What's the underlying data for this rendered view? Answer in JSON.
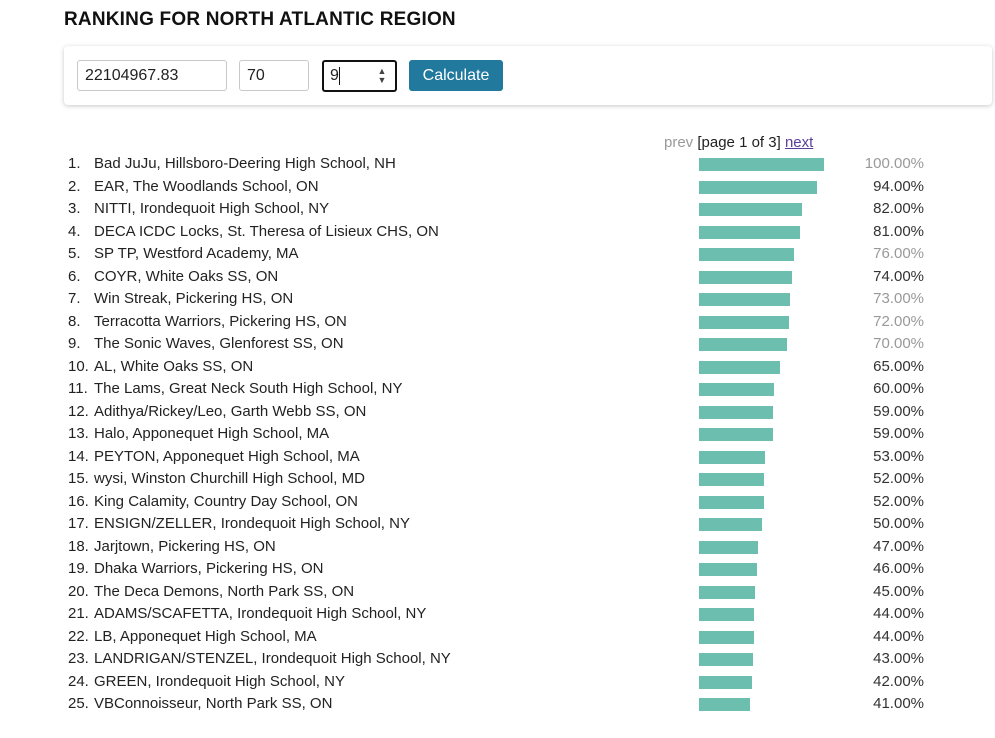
{
  "page": {
    "title": "RANKING FOR NORTH ATLANTIC REGION"
  },
  "controls": {
    "amount_value": "22104967.83",
    "percent_value": "70",
    "count_value": "9",
    "calculate_label": "Calculate"
  },
  "pager": {
    "prev_label": "prev",
    "page_label": "[page 1 of 3]",
    "next_label": "next"
  },
  "colors": {
    "bar": "#6cbfae",
    "button": "#21799e",
    "muted_text": "#999999",
    "link": "#5a3f99"
  },
  "rankings": [
    {
      "rank": "1.",
      "name": "Bad JuJu, Hillsboro-Deering High School, NH",
      "percent": "100.00%",
      "value": 100,
      "muted": true
    },
    {
      "rank": "2.",
      "name": "EAR, The Woodlands School, ON",
      "percent": "94.00%",
      "value": 94,
      "muted": false
    },
    {
      "rank": "3.",
      "name": "NITTI, Irondequoit High School, NY",
      "percent": "82.00%",
      "value": 82,
      "muted": false
    },
    {
      "rank": "4.",
      "name": "DECA ICDC Locks, St. Theresa of Lisieux CHS, ON",
      "percent": "81.00%",
      "value": 81,
      "muted": false
    },
    {
      "rank": "5.",
      "name": "SP TP, Westford Academy, MA",
      "percent": "76.00%",
      "value": 76,
      "muted": true
    },
    {
      "rank": "6.",
      "name": "COYR, White Oaks SS, ON",
      "percent": "74.00%",
      "value": 74,
      "muted": false
    },
    {
      "rank": "7.",
      "name": "Win Streak, Pickering HS, ON",
      "percent": "73.00%",
      "value": 73,
      "muted": true
    },
    {
      "rank": "8.",
      "name": "Terracotta Warriors, Pickering HS, ON",
      "percent": "72.00%",
      "value": 72,
      "muted": true
    },
    {
      "rank": "9.",
      "name": "The Sonic Waves, Glenforest SS, ON",
      "percent": "70.00%",
      "value": 70,
      "muted": true
    },
    {
      "rank": "10.",
      "name": "AL, White Oaks SS, ON",
      "percent": "65.00%",
      "value": 65,
      "muted": false
    },
    {
      "rank": "11.",
      "name": "The Lams, Great Neck South High School, NY",
      "percent": "60.00%",
      "value": 60,
      "muted": false
    },
    {
      "rank": "12.",
      "name": "Adithya/Rickey/Leo, Garth Webb SS, ON",
      "percent": "59.00%",
      "value": 59,
      "muted": false
    },
    {
      "rank": "13.",
      "name": "Halo, Apponequet High School, MA",
      "percent": "59.00%",
      "value": 59,
      "muted": false
    },
    {
      "rank": "14.",
      "name": "PEYTON, Apponequet High School, MA",
      "percent": "53.00%",
      "value": 53,
      "muted": false
    },
    {
      "rank": "15.",
      "name": "wysi, Winston Churchill High School, MD",
      "percent": "52.00%",
      "value": 52,
      "muted": false
    },
    {
      "rank": "16.",
      "name": "King Calamity, Country Day School, ON",
      "percent": "52.00%",
      "value": 52,
      "muted": false
    },
    {
      "rank": "17.",
      "name": "ENSIGN/ZELLER, Irondequoit High School, NY",
      "percent": "50.00%",
      "value": 50,
      "muted": false
    },
    {
      "rank": "18.",
      "name": "Jarjtown, Pickering HS, ON",
      "percent": "47.00%",
      "value": 47,
      "muted": false
    },
    {
      "rank": "19.",
      "name": "Dhaka Warriors, Pickering HS, ON",
      "percent": "46.00%",
      "value": 46,
      "muted": false
    },
    {
      "rank": "20.",
      "name": "The Deca Demons, North Park SS, ON",
      "percent": "45.00%",
      "value": 45,
      "muted": false
    },
    {
      "rank": "21.",
      "name": "ADAMS/SCAFETTA, Irondequoit High School, NY",
      "percent": "44.00%",
      "value": 44,
      "muted": false
    },
    {
      "rank": "22.",
      "name": "LB, Apponequet High School, MA",
      "percent": "44.00%",
      "value": 44,
      "muted": false
    },
    {
      "rank": "23.",
      "name": "LANDRIGAN/STENZEL, Irondequoit High School, NY",
      "percent": "43.00%",
      "value": 43,
      "muted": false
    },
    {
      "rank": "24.",
      "name": "GREEN, Irondequoit High School, NY",
      "percent": "42.00%",
      "value": 42,
      "muted": false
    },
    {
      "rank": "25.",
      "name": "VBConnoisseur, North Park SS, ON",
      "percent": "41.00%",
      "value": 41,
      "muted": false
    }
  ]
}
